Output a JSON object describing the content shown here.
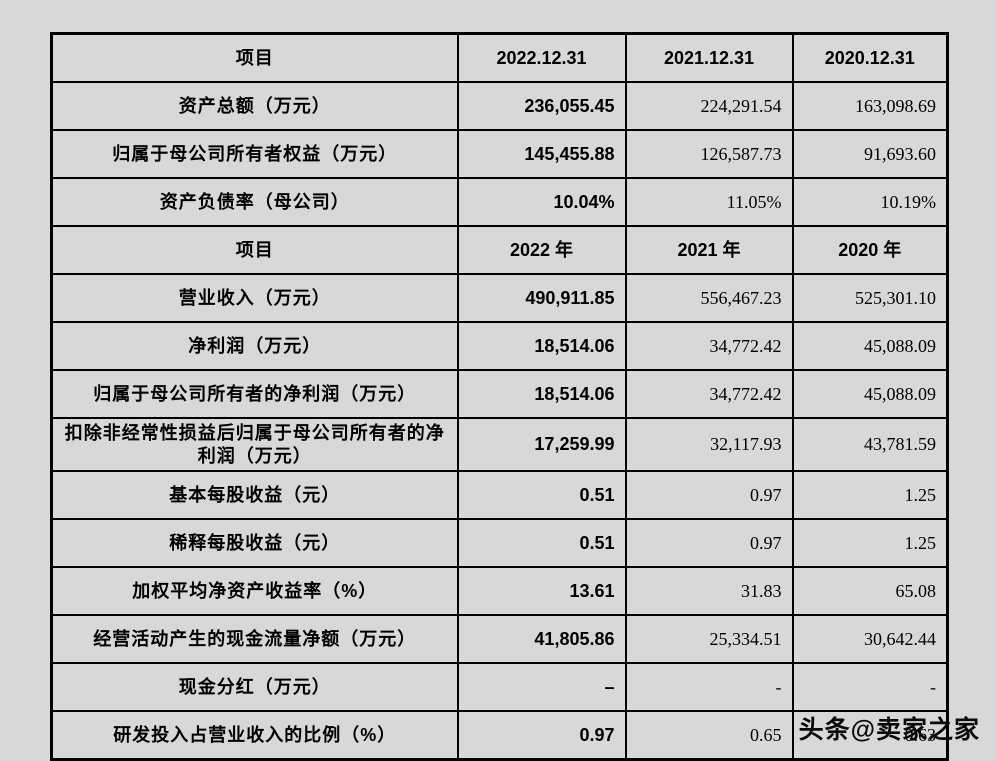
{
  "page": {
    "background": "#d8d8d8",
    "watermark": "头条@卖家之家"
  },
  "table": {
    "rows": [
      {
        "kind": "header",
        "label": "项目",
        "v1": "2022.12.31",
        "v2": "2021.12.31",
        "v3": "2020.12.31"
      },
      {
        "kind": "data",
        "label": "资产总额（万元）",
        "v1": "236,055.45",
        "v2": "224,291.54",
        "v3": "163,098.69"
      },
      {
        "kind": "data",
        "label": "归属于母公司所有者权益（万元）",
        "v1": "145,455.88",
        "v2": "126,587.73",
        "v3": "91,693.60"
      },
      {
        "kind": "data",
        "label": "资产负债率（母公司）",
        "v1": "10.04%",
        "v2": "11.05%",
        "v3": "10.19%"
      },
      {
        "kind": "header",
        "label": "项目",
        "v1": "2022 年",
        "v2": "2021 年",
        "v3": "2020 年"
      },
      {
        "kind": "data",
        "label": "营业收入（万元）",
        "v1": "490,911.85",
        "v2": "556,467.23",
        "v3": "525,301.10"
      },
      {
        "kind": "data",
        "label": "净利润（万元）",
        "v1": "18,514.06",
        "v2": "34,772.42",
        "v3": "45,088.09"
      },
      {
        "kind": "data",
        "label": "归属于母公司所有者的净利润（万元）",
        "v1": "18,514.06",
        "v2": "34,772.42",
        "v3": "45,088.09"
      },
      {
        "kind": "data",
        "label": "扣除非经常性损益后归属于母公司所有者的净利润（万元）",
        "v1": "17,259.99",
        "v2": "32,117.93",
        "v3": "43,781.59"
      },
      {
        "kind": "data",
        "label": "基本每股收益（元）",
        "v1": "0.51",
        "v2": "0.97",
        "v3": "1.25"
      },
      {
        "kind": "data",
        "label": "稀释每股收益（元）",
        "v1": "0.51",
        "v2": "0.97",
        "v3": "1.25"
      },
      {
        "kind": "data",
        "label": "加权平均净资产收益率（%）",
        "v1": "13.61",
        "v2": "31.83",
        "v3": "65.08"
      },
      {
        "kind": "data",
        "label": "经营活动产生的现金流量净额（万元）",
        "v1": "41,805.86",
        "v2": "25,334.51",
        "v3": "30,642.44"
      },
      {
        "kind": "data",
        "label": "现金分红（万元）",
        "v1": "–",
        "v2": "-",
        "v3": "-"
      },
      {
        "kind": "data",
        "label": "研发投入占营业收入的比例（%）",
        "v1": "0.97",
        "v2": "0.65",
        "v3": "0.63"
      }
    ]
  }
}
